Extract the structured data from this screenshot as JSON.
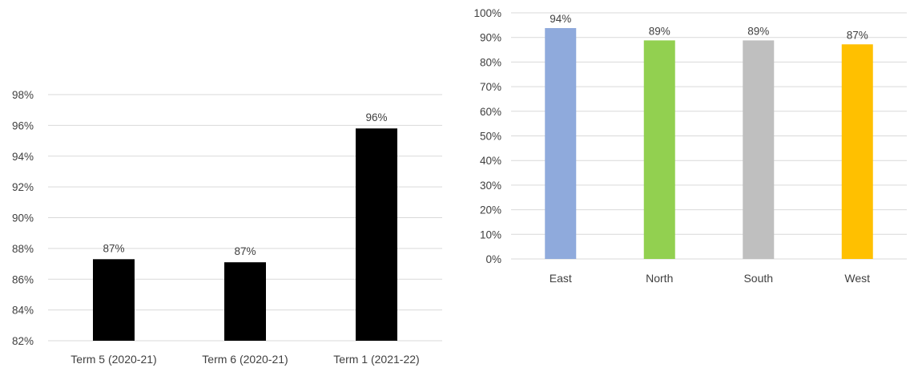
{
  "chart_data": [
    {
      "type": "bar",
      "title": "",
      "xlabel": "",
      "ylabel": "",
      "categories": [
        "Term 5 (2020-21)",
        "Term 6 (2020-21)",
        "Term 1 (2021-22)"
      ],
      "values": [
        87.3,
        87.1,
        95.8
      ],
      "data_labels": [
        "87%",
        "87%",
        "96%"
      ],
      "colors": [
        "#000000",
        "#000000",
        "#000000"
      ],
      "ylim": [
        82,
        98
      ],
      "yticks": [
        82,
        84,
        86,
        88,
        90,
        92,
        94,
        96,
        98
      ],
      "ytick_labels": [
        "82%",
        "84%",
        "86%",
        "88%",
        "90%",
        "92%",
        "94%",
        "96%",
        "98%"
      ],
      "grid": true,
      "legend": "none"
    },
    {
      "type": "bar",
      "title": "",
      "xlabel": "",
      "ylabel": "",
      "categories": [
        "East",
        "North",
        "South",
        "West"
      ],
      "values": [
        93.8,
        88.8,
        88.8,
        87.2
      ],
      "data_labels": [
        "94%",
        "89%",
        "89%",
        "87%"
      ],
      "colors": [
        "#8faadc",
        "#92d050",
        "#bfbfbf",
        "#ffc000"
      ],
      "ylim": [
        0,
        100
      ],
      "yticks": [
        0,
        10,
        20,
        30,
        40,
        50,
        60,
        70,
        80,
        90,
        100
      ],
      "ytick_labels": [
        "0%",
        "10%",
        "20%",
        "30%",
        "40%",
        "50%",
        "60%",
        "70%",
        "80%",
        "90%",
        "100%"
      ],
      "grid": true,
      "legend": "none"
    }
  ]
}
